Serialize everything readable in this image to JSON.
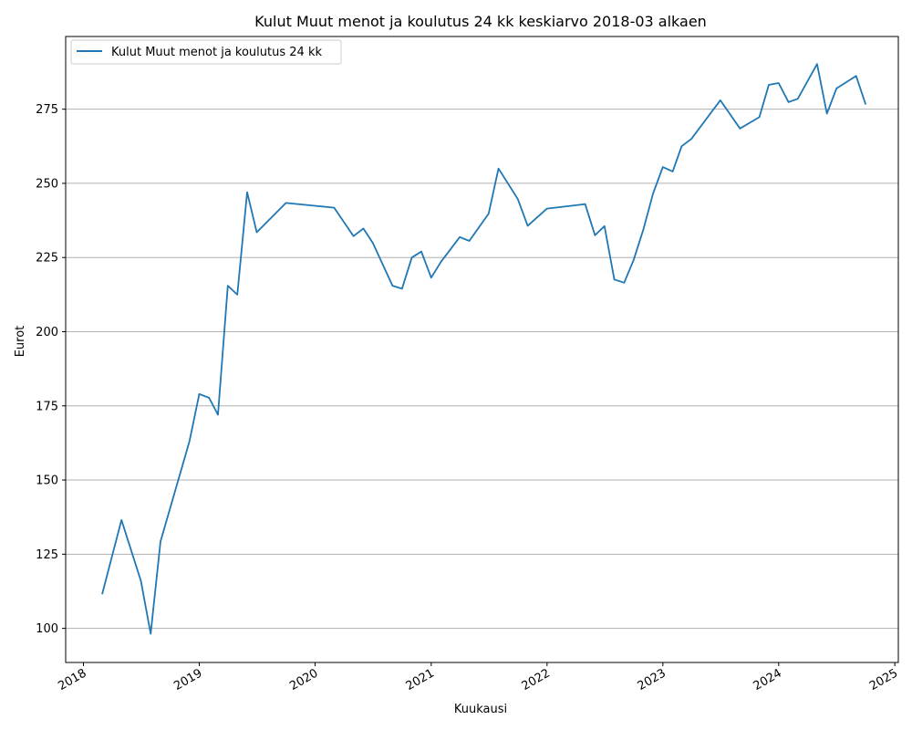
{
  "chart_data": {
    "type": "line",
    "title": "Kulut Muut menot ja koulutus 24 kk keskiarvo 2018-03 alkaen",
    "xlabel": "Kuukausi",
    "ylabel": "Eurot",
    "xlim": [
      "2017-11-06",
      "2025-01-12"
    ],
    "ylim": [
      88.5,
      299.5
    ],
    "x_ticks": [
      "2018",
      "2019",
      "2020",
      "2021",
      "2022",
      "2023",
      "2024",
      "2025"
    ],
    "y_ticks": [
      100,
      125,
      150,
      175,
      200,
      225,
      250,
      275
    ],
    "grid": "horizontal",
    "legend_position": "top-left",
    "colors": {
      "series": "#1f77b4",
      "grid": "#b0b0b0"
    },
    "series": [
      {
        "name": "Kulut Muut menot ja koulutus 24 kk",
        "x": [
          "2018-03-01",
          "2018-05-01",
          "2018-07-01",
          "2018-08-01",
          "2018-09-01",
          "2018-12-01",
          "2019-01-01",
          "2019-02-01",
          "2019-03-01",
          "2019-04-01",
          "2019-05-01",
          "2019-06-01",
          "2019-07-01",
          "2019-10-01",
          "2020-03-01",
          "2020-05-01",
          "2020-06-01",
          "2020-07-01",
          "2020-09-01",
          "2020-10-01",
          "2020-11-01",
          "2020-12-01",
          "2021-01-01",
          "2021-02-01",
          "2021-04-01",
          "2021-05-01",
          "2021-07-01",
          "2021-08-01",
          "2021-10-01",
          "2021-11-01",
          "2022-01-01",
          "2022-05-01",
          "2022-06-01",
          "2022-07-01",
          "2022-08-01",
          "2022-09-01",
          "2022-10-01",
          "2022-11-01",
          "2022-12-01",
          "2023-01-01",
          "2023-02-01",
          "2023-03-01",
          "2023-04-01",
          "2023-07-01",
          "2023-09-01",
          "2023-11-01",
          "2023-12-01",
          "2024-01-01",
          "2024-02-01",
          "2024-03-01",
          "2024-05-01",
          "2024-06-01",
          "2024-07-01",
          "2024-09-01",
          "2024-10-01"
        ],
        "values": [
          111.5,
          136.5,
          116,
          98.2,
          129.3,
          163,
          179,
          177.7,
          172,
          215.5,
          212.5,
          247,
          233.5,
          243.4,
          241.8,
          232.2,
          234.8,
          229.9,
          215.5,
          214.5,
          225,
          227,
          218.2,
          223.6,
          231.9,
          230.6,
          239.8,
          255,
          244.7,
          235.7,
          241.5,
          243,
          232.5,
          235.6,
          217.6,
          216.5,
          224.2,
          234.6,
          246.5,
          255.5,
          254,
          262.5,
          265,
          278,
          268.5,
          272.3,
          283.2,
          283.8,
          277.4,
          278.5,
          290.2,
          273.5,
          282,
          286.2,
          276.6
        ]
      }
    ]
  }
}
